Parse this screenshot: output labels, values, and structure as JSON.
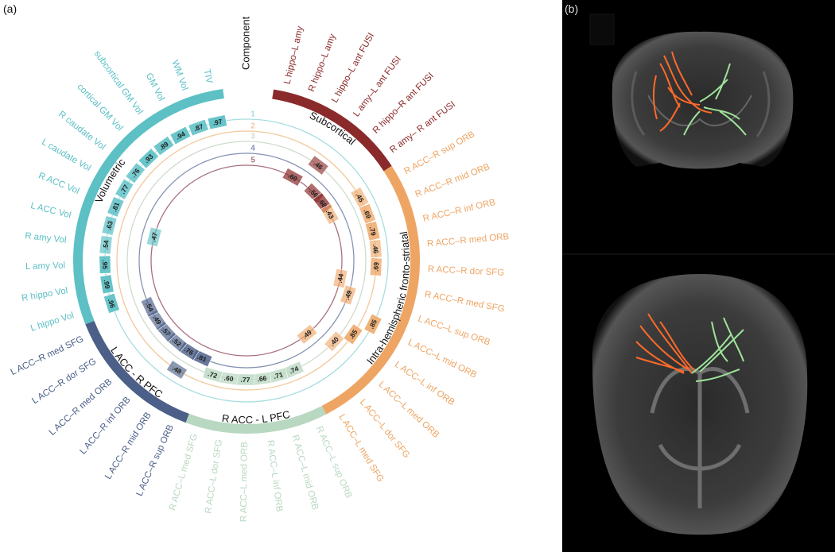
{
  "panel_a": {
    "label": "(a)",
    "component_title": "Component",
    "ring_labels": [
      "1",
      "2",
      "3",
      "4",
      "5"
    ],
    "ring_colors": [
      "#a9dde0",
      "#f2c89c",
      "#cfdccd",
      "#8593b3",
      "#a8707c"
    ],
    "groups": [
      {
        "name": "Subcortical",
        "color": "#8b2a2a",
        "variables": [
          "L hippo–L amy",
          "R hippo–L amy",
          "L hippo–L ant FUSI",
          "L amy–L ant FUSI",
          "R hippo–R ant FUSI",
          "R amy– R ant FUSI"
        ],
        "loadings": [
          [
            null,
            null,
            null,
            null,
            null,
            null
          ],
          [
            null,
            null,
            null,
            null,
            null,
            null
          ],
          [
            null,
            null,
            null,
            ".46",
            null,
            null
          ],
          [
            null,
            null,
            null,
            null,
            null,
            null
          ],
          [
            null,
            null,
            ".60",
            null,
            ".56",
            ".68"
          ]
        ]
      },
      {
        "name": "Intra-hemispheric fronto-striatal",
        "color": "#eea564",
        "variables": [
          "R ACC–R sup ORB",
          "R ACC–R mid ORB",
          "R ACC–R inf ORB",
          "R ACC–R med ORB",
          "R ACC–R dor SFG",
          "R ACC–R med SFG",
          "L ACC–L sup ORB",
          "L ACC–L mid ORB",
          "L ACC–L inf ORB",
          "L ACC–L med ORB",
          "L ACC–L dor SFG",
          "L ACC–L med SFG"
        ],
        "loadings": [
          [
            null,
            null,
            null,
            null,
            null,
            null,
            null,
            ".85",
            null,
            null,
            null,
            null
          ],
          [
            ".45",
            ".69",
            ".79",
            ".46",
            ".69",
            null,
            null,
            null,
            ".85",
            null,
            null,
            null
          ],
          [
            null,
            null,
            null,
            null,
            null,
            null,
            null,
            null,
            null,
            ".40",
            null,
            null
          ],
          [
            null,
            null,
            null,
            null,
            null,
            null,
            ".49",
            null,
            null,
            null,
            null,
            null
          ],
          [
            ".43",
            null,
            null,
            null,
            null,
            ".44",
            null,
            null,
            null,
            null,
            ".49",
            null
          ]
        ]
      },
      {
        "name": "R ACC - L PFC",
        "color": "#b9d8c1",
        "variables": [
          "R ACC–L sup ORB",
          "R ACC–L mid ORB",
          "R ACC–L inf ORB",
          "R ACC–L med ORB",
          "R ACC–L dor SFG",
          "R ACC–L med SFG"
        ],
        "loadings": [
          [
            null,
            null,
            null,
            null,
            null,
            null
          ],
          [
            null,
            null,
            null,
            null,
            null,
            null
          ],
          [
            ".74",
            ".71",
            ".66",
            ".77",
            ".60",
            ".72"
          ],
          [
            null,
            null,
            null,
            null,
            null,
            null
          ],
          [
            null,
            null,
            null,
            null,
            null,
            null
          ]
        ]
      },
      {
        "name": "L ACC - R PFC",
        "color": "#4b5f88",
        "variables": [
          "L ACC–R sup ORB",
          "L ACC–R mid ORB",
          "L ACC–R inf ORB",
          "L ACC–R med ORB",
          "L ACC–R dor SFG",
          "L ACC–R med SFG"
        ],
        "loadings": [
          [
            null,
            null,
            null,
            null,
            null,
            null
          ],
          [
            null,
            ".48",
            null,
            null,
            null,
            null
          ],
          [
            null,
            null,
            null,
            null,
            null,
            null
          ],
          [
            ".81",
            ".76",
            ".52",
            ".57",
            ".49",
            ".54"
          ],
          [
            null,
            null,
            null,
            null,
            null,
            null
          ]
        ]
      },
      {
        "name": "Volumetric",
        "color": "#5cc0c5",
        "variables": [
          "L hippo Vol",
          "R hippo Vol",
          "L amy Vol",
          "R amy Vol",
          "L ACC Vol",
          "R ACC Vol",
          "L caudate Vol",
          "R caudate Vol",
          "cortical GM Vol",
          "subcortical GM Vol",
          "GM Vol",
          "WM Vol",
          "TIV"
        ],
        "loadings": [
          [
            ".96",
            ".99",
            ".95",
            ".54",
            ".63",
            ".81",
            ".77",
            ".76",
            ".93",
            ".89",
            ".94",
            ".87",
            ".97"
          ],
          [
            null,
            null,
            null,
            null,
            null,
            null,
            null,
            null,
            null,
            null,
            null,
            null,
            null
          ],
          [
            null,
            null,
            null,
            null,
            null,
            null,
            null,
            null,
            null,
            null,
            null,
            null,
            null
          ],
          [
            null,
            null,
            null,
            null,
            null,
            null,
            null,
            null,
            null,
            null,
            null,
            null,
            null
          ],
          [
            null,
            null,
            null,
            null,
            ".47",
            null,
            null,
            null,
            null,
            null,
            null,
            null,
            null
          ]
        ]
      }
    ]
  },
  "panel_b": {
    "label": "(b)"
  }
}
